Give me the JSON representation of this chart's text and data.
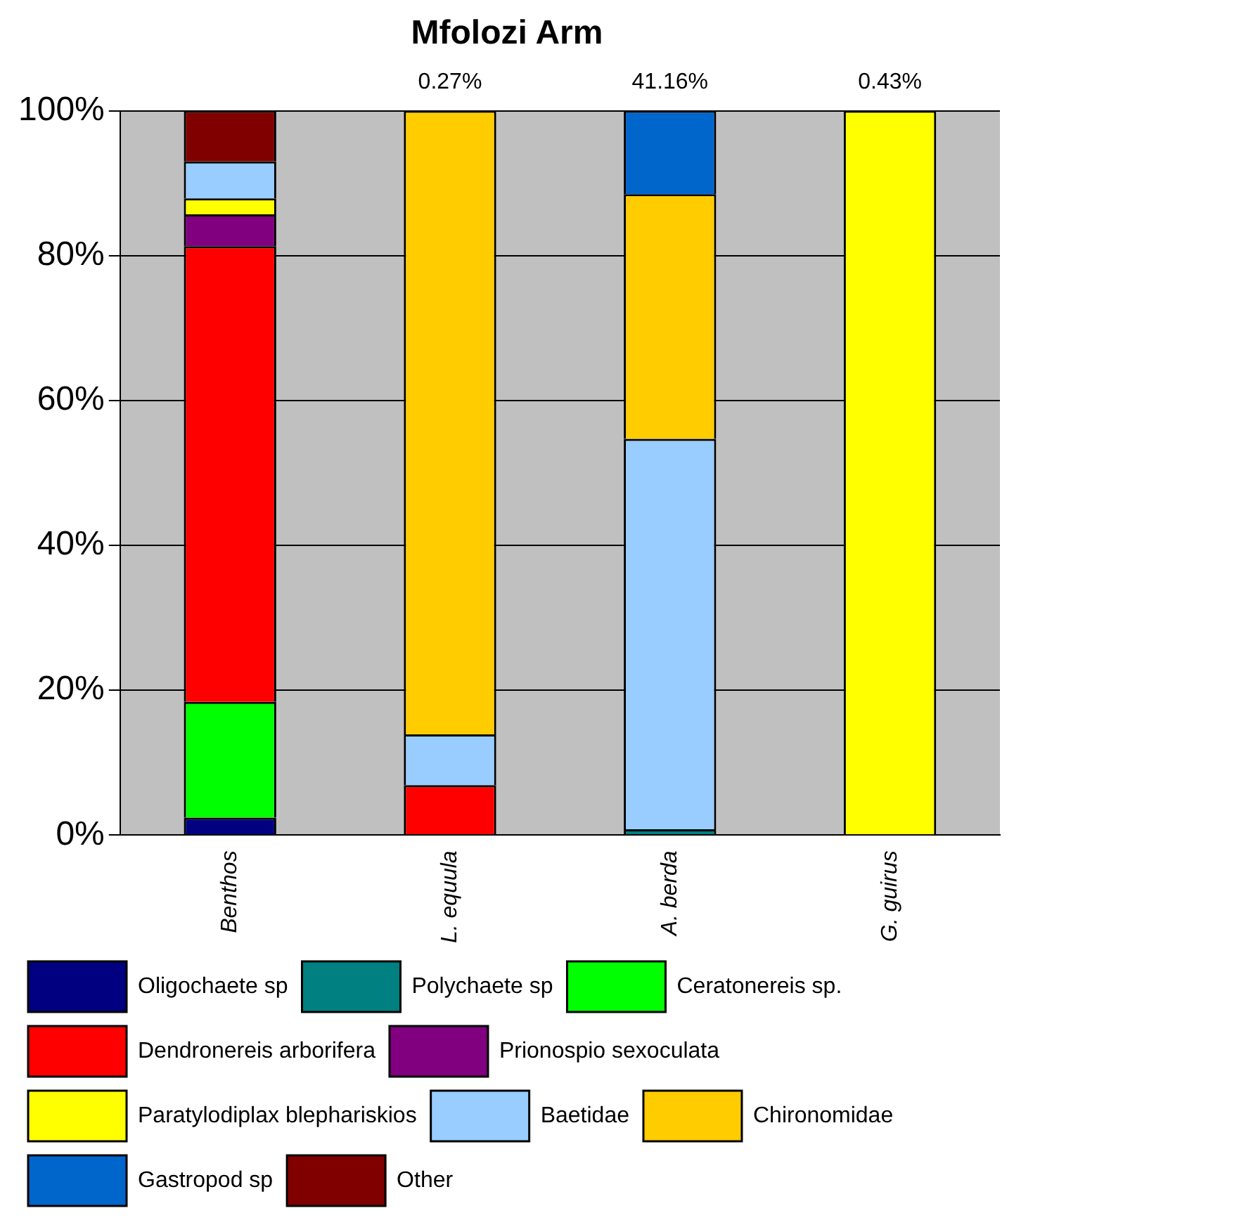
{
  "chart_data": {
    "type": "bar",
    "title": "Mfolozi Arm",
    "stacked": true,
    "categories": [
      "Benthos",
      "L. equula",
      "A. berda",
      "G. guirus"
    ],
    "series": [
      {
        "name": "Oligochaete sp",
        "color": "#000080",
        "values": [
          2.4,
          0,
          0,
          0
        ]
      },
      {
        "name": "Polychaete sp",
        "color": "#008080",
        "values": [
          0,
          0,
          0.8,
          0
        ]
      },
      {
        "name": "Ceratonereis sp.",
        "color": "#00ff00",
        "values": [
          16,
          0,
          0,
          0
        ]
      },
      {
        "name": "Dendronereis arborifera",
        "color": "#ff0000",
        "values": [
          62.9,
          6.9,
          0,
          0
        ]
      },
      {
        "name": "Prionospio sexoculata",
        "color": "#800080",
        "values": [
          4.4,
          0,
          0,
          0
        ]
      },
      {
        "name": "Paratylodiplax blephariskios",
        "color": "#ffff00",
        "values": [
          2.2,
          0,
          0,
          100
        ]
      },
      {
        "name": "Baetidae",
        "color": "#99ccff",
        "values": [
          5.1,
          7,
          53.9,
          0
        ]
      },
      {
        "name": "Chironomidae",
        "color": "#ffcc00",
        "values": [
          0,
          86.1,
          33.8,
          0
        ]
      },
      {
        "name": "Gastropod sp",
        "color": "#0066cc",
        "values": [
          0,
          0,
          11.5,
          0
        ]
      },
      {
        "name": "Other",
        "color": "#800000",
        "values": [
          7,
          0,
          0,
          0
        ]
      }
    ],
    "ylim": [
      0,
      100
    ],
    "yticks": [
      {
        "value": 0,
        "label": "0%"
      },
      {
        "value": 20,
        "label": "20%"
      },
      {
        "value": 40,
        "label": "40%"
      },
      {
        "value": 60,
        "label": "60%"
      },
      {
        "value": 80,
        "label": "80%"
      },
      {
        "value": 100,
        "label": "100%"
      }
    ],
    "grid": "y",
    "legend": "bottom",
    "annotations": [
      {
        "text": "0.27%",
        "x": "L. equula",
        "y": 100
      },
      {
        "text": "41.16%",
        "x": "A. berda",
        "y": 100
      },
      {
        "text": "0.43%",
        "x": "G. guirus",
        "y": 100
      }
    ]
  }
}
